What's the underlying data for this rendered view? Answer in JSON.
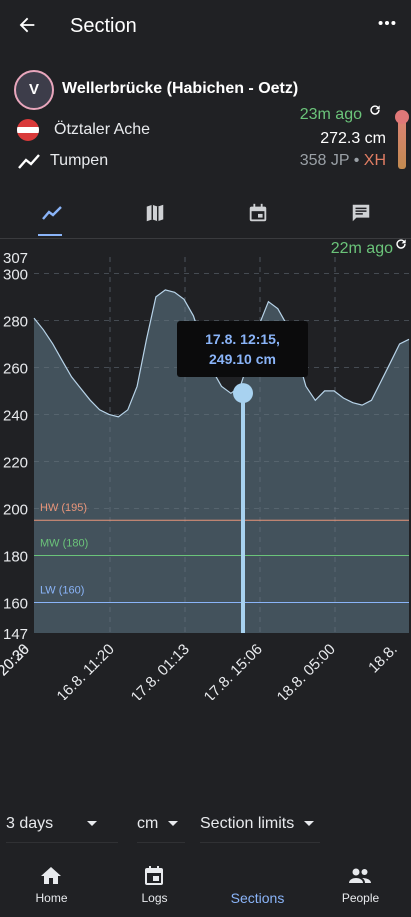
{
  "appbar": {
    "title": "Section",
    "back_icon": "arrow-back-icon",
    "more_icon": "more-horiz-icon"
  },
  "section": {
    "avatar_letter": "V",
    "name": "Wellerbrücke (Habichen - Oetz)",
    "river": "Ötztaler Ache",
    "gauge": "Tumpen",
    "updated": "23m ago",
    "level": "272.3 cm",
    "grade_prefix": "358 JP •",
    "grade": "XH",
    "colors": {
      "green": "#6bc47a",
      "grade": "#e07d63",
      "accent": "#8ab4f8"
    }
  },
  "tabs": [
    {
      "name": "chart",
      "icon": "chart-line-icon",
      "active": true
    },
    {
      "name": "map",
      "icon": "map-icon",
      "active": false
    },
    {
      "name": "calendar",
      "icon": "calendar-icon",
      "active": false
    },
    {
      "name": "comments",
      "icon": "comment-icon",
      "active": false
    }
  ],
  "chart_data": {
    "type": "area",
    "updated": "22m ago",
    "ylim": [
      147,
      307
    ],
    "y_ticks": [
      "307",
      "300",
      "280",
      "260",
      "240",
      "220",
      "200",
      "180",
      "160",
      "147"
    ],
    "x_ticks": [
      "15.8. 20:30",
      "15.8. 20:26",
      "16.8. 11:20",
      "17.8. 01:13",
      "17.8. 15:06",
      "18.8. 05:00",
      "18.8."
    ],
    "limits": [
      {
        "label": "HW (195)",
        "value": 195,
        "color": "#e8957a"
      },
      {
        "label": "MW (180)",
        "value": 180,
        "color": "#6bc47a"
      },
      {
        "label": "LW (160)",
        "value": 160,
        "color": "#8ab4f8"
      }
    ],
    "series": [
      {
        "values": [
          281,
          276,
          270,
          263,
          256,
          251,
          246,
          242,
          240,
          239,
          242,
          252,
          272,
          290,
          293,
          292,
          289,
          282,
          270,
          259,
          252,
          249,
          252,
          264,
          278,
          288,
          285,
          278,
          266,
          252,
          246,
          250,
          250,
          247,
          245,
          244,
          246,
          254,
          262,
          270,
          272
        ]
      }
    ],
    "tooltip": {
      "line1": "17.8. 12:15,",
      "line2": "249.10 cm",
      "value": 249.1
    }
  },
  "filters": {
    "range": "3 days",
    "unit": "cm",
    "limits": "Section limits"
  },
  "nav": [
    {
      "label": "Home",
      "icon": "home-icon"
    },
    {
      "label": "Logs",
      "icon": "logbook-icon"
    },
    {
      "label": "Sections",
      "icon": "",
      "active": true
    },
    {
      "label": "People",
      "icon": "people-icon"
    }
  ]
}
